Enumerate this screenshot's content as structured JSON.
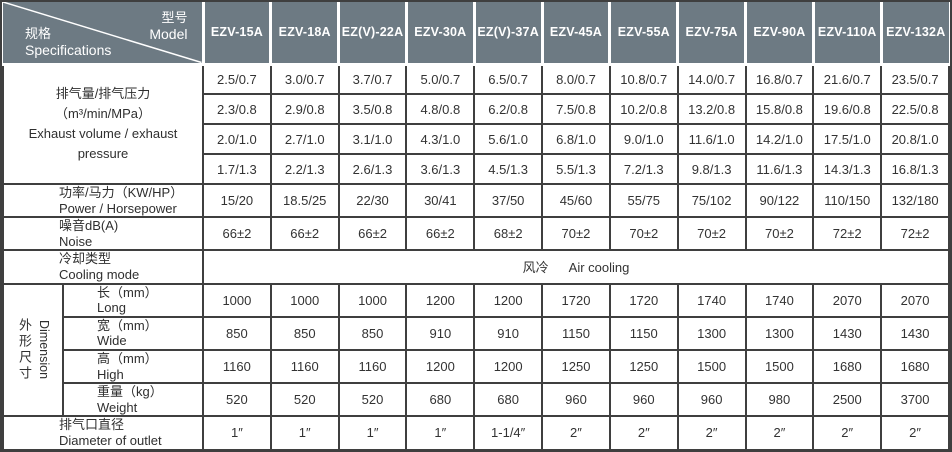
{
  "header": {
    "corner": {
      "model_cn": "型号",
      "model_en": "Model",
      "spec_cn": "规格",
      "spec_en": "Specifications"
    },
    "models": [
      "EZV-15A",
      "EZV-18A",
      "EZ(V)-22A",
      "EZV-30A",
      "EZ(V)-37A",
      "EZV-45A",
      "EZV-55A",
      "EZV-75A",
      "EZV-90A",
      "EZV-110A",
      "EZV-132A"
    ]
  },
  "table": {
    "exhaust": {
      "label_cn": "排气量/排气压力",
      "label_unit": "（m³/min/MPa）",
      "label_en": "Exhaust volume / exhaust pressure",
      "rows": [
        [
          "2.5/0.7",
          "3.0/0.7",
          "3.7/0.7",
          "5.0/0.7",
          "6.5/0.7",
          "8.0/0.7",
          "10.8/0.7",
          "14.0/0.7",
          "16.8/0.7",
          "21.6/0.7",
          "23.5/0.7"
        ],
        [
          "2.3/0.8",
          "2.9/0.8",
          "3.5/0.8",
          "4.8/0.8",
          "6.2/0.8",
          "7.5/0.8",
          "10.2/0.8",
          "13.2/0.8",
          "15.8/0.8",
          "19.6/0.8",
          "22.5/0.8"
        ],
        [
          "2.0/1.0",
          "2.7/1.0",
          "3.1/1.0",
          "4.3/1.0",
          "5.6/1.0",
          "6.8/1.0",
          "9.0/1.0",
          "11.6/1.0",
          "14.2/1.0",
          "17.5/1.0",
          "20.8/1.0"
        ],
        [
          "1.7/1.3",
          "2.2/1.3",
          "2.6/1.3",
          "3.6/1.3",
          "4.5/1.3",
          "5.5/1.3",
          "7.2/1.3",
          "9.8/1.3",
          "11.6/1.3",
          "14.3/1.3",
          "16.8/1.3"
        ]
      ]
    },
    "power": {
      "label_cn": "功率/马力（KW/HP）",
      "label_en": "Power / Horsepower",
      "values": [
        "15/20",
        "18.5/25",
        "22/30",
        "30/41",
        "37/50",
        "45/60",
        "55/75",
        "75/102",
        "90/122",
        "110/150",
        "132/180"
      ]
    },
    "noise": {
      "label_cn": "噪音dB(A)",
      "label_en": "Noise",
      "values": [
        "66±2",
        "66±2",
        "66±2",
        "66±2",
        "68±2",
        "70±2",
        "70±2",
        "70±2",
        "70±2",
        "72±2",
        "72±2"
      ]
    },
    "cooling": {
      "label_cn": "冷却类型",
      "label_en": "Cooling mode",
      "value_cn": "风冷",
      "value_en": "Air cooling"
    },
    "dimension": {
      "label_cn": "外形尺寸",
      "label_en": "Dimension",
      "rows": [
        {
          "cn": "长（mm）",
          "en": "Long",
          "values": [
            "1000",
            "1000",
            "1000",
            "1200",
            "1200",
            "1720",
            "1720",
            "1740",
            "1740",
            "2070",
            "2070"
          ]
        },
        {
          "cn": "宽（mm）",
          "en": "Wide",
          "values": [
            "850",
            "850",
            "850",
            "910",
            "910",
            "1150",
            "1150",
            "1300",
            "1300",
            "1430",
            "1430"
          ]
        },
        {
          "cn": "高（mm）",
          "en": "High",
          "values": [
            "1160",
            "1160",
            "1160",
            "1200",
            "1200",
            "1250",
            "1250",
            "1500",
            "1500",
            "1680",
            "1680"
          ]
        },
        {
          "cn": "重量（kg）",
          "en": "Weight",
          "values": [
            "520",
            "520",
            "520",
            "680",
            "680",
            "960",
            "960",
            "960",
            "980",
            "2500",
            "3700"
          ]
        }
      ]
    },
    "outlet": {
      "label_cn": "排气口直径",
      "label_en": "Diameter of outlet",
      "values": [
        "1″",
        "1″",
        "1″",
        "1″",
        "1-1/4″",
        "2″",
        "2″",
        "2″",
        "2″",
        "2″",
        "2″"
      ]
    }
  },
  "colors": {
    "header_bg": "#6d7a83",
    "grid_border": "#3f3f3f",
    "header_text": "#ffffff",
    "body_text": "#333333"
  }
}
